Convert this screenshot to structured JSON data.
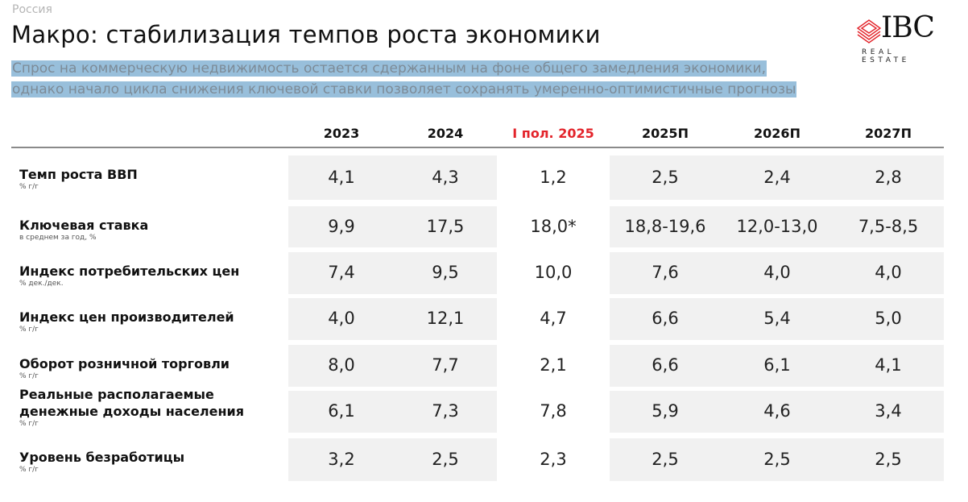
{
  "region": "Россия",
  "title": "Макро: стабилизация темпов роста экономики",
  "subtitle": [
    "Спрос на коммерческую недвижимость остается сдержанным на фоне общего замедления экономики,",
    "однако начало цикла снижения ключевой ставки позволяет сохранять умеренно-оптимистичные прогнозы"
  ],
  "logo": {
    "brand": "IBC",
    "tagline": "REAL ESTATE",
    "accent": "#e3242b"
  },
  "columns": [
    "2023",
    "2024",
    "I пол. 2025",
    "2025П",
    "2026П",
    "2027П"
  ],
  "rows": [
    {
      "label": "Темп роста ВВП",
      "unit": "% г/г",
      "values": [
        "4,1",
        "4,3",
        "1,2",
        "2,5",
        "2,4",
        "2,8"
      ]
    },
    {
      "label": "Ключевая ставка",
      "unit": "в среднем за год, %",
      "values": [
        "9,9",
        "17,5",
        "18,0*",
        "18,8-19,6",
        "12,0-13,0",
        "7,5-8,5"
      ]
    },
    {
      "label": "Индекс потребительских цен",
      "unit": "% дек./дек.",
      "values": [
        "7,4",
        "9,5",
        "10,0",
        "7,6",
        "4,0",
        "4,0"
      ]
    },
    {
      "label": "Индекс цен производителей",
      "unit": "% г/г",
      "values": [
        "4,0",
        "12,1",
        "4,7",
        "6,6",
        "5,4",
        "5,0"
      ]
    },
    {
      "label": "Оборот розничной торговли",
      "unit": "% г/г",
      "values": [
        "8,0",
        "7,7",
        "2,1",
        "6,6",
        "6,1",
        "4,1"
      ]
    },
    {
      "label": "Реальные располагаемые денежные доходы населения",
      "unit": "% г/г",
      "values": [
        "6,1",
        "7,3",
        "7,8",
        "5,9",
        "4,6",
        "3,4"
      ]
    },
    {
      "label": "Уровень безработицы",
      "unit": "% г/г",
      "values": [
        "3,2",
        "2,5",
        "2,3",
        "2,5",
        "2,5",
        "2,5"
      ]
    }
  ]
}
